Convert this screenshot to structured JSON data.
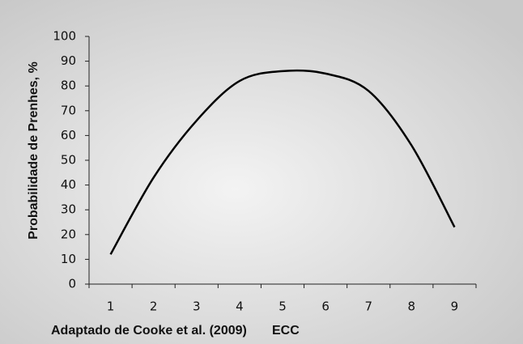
{
  "chart_data": {
    "type": "line",
    "y_label": "Probabilidade de Prenhes, %",
    "x_label": "ECC",
    "source": "Adaptado de Cooke et al. (2009)",
    "categories": [
      "1",
      "2",
      "3",
      "4",
      "5",
      "6",
      "7",
      "8",
      "9"
    ],
    "values": [
      12,
      43,
      66,
      82,
      86,
      85,
      78,
      56,
      23
    ],
    "color": "#000000",
    "smooth": true,
    "ylim": [
      0,
      100
    ],
    "yticks": [
      0,
      10,
      20,
      30,
      40,
      50,
      60,
      70,
      80,
      90,
      100
    ]
  }
}
